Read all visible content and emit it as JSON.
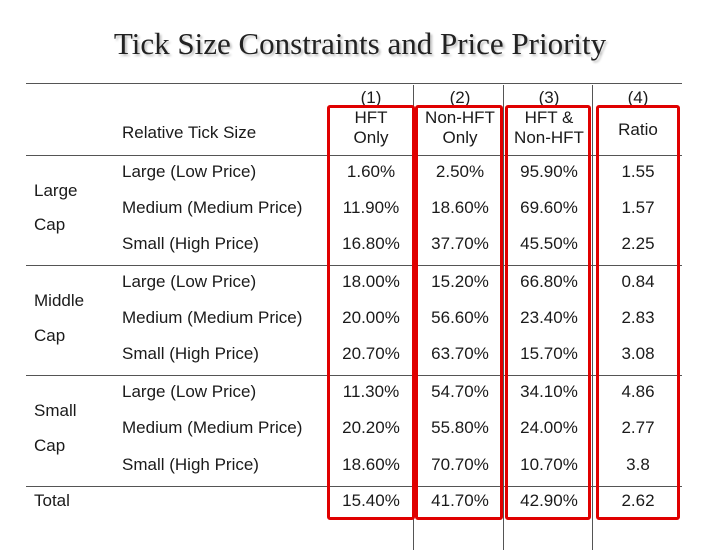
{
  "title": "Tick Size Constraints and Price Priority",
  "columns": [
    {
      "num": "(1)",
      "lines": [
        "HFT",
        "Only"
      ]
    },
    {
      "num": "(2)",
      "lines": [
        "Non-HFT",
        "Only"
      ]
    },
    {
      "num": "(3)",
      "lines": [
        "HFT &",
        "Non-HFT"
      ]
    },
    {
      "num": "(4)",
      "lines": [
        "Ratio"
      ]
    }
  ],
  "row_header": "Relative Tick Size",
  "groups": [
    {
      "label1": "Large",
      "label2": "Cap",
      "rows": [
        {
          "size": "Large (Low Price)",
          "vals": [
            "1.60%",
            "2.50%",
            "95.90%",
            "1.55"
          ]
        },
        {
          "size": "Medium (Medium Price)",
          "vals": [
            "11.90%",
            "18.60%",
            "69.60%",
            "1.57"
          ]
        },
        {
          "size": "Small (High Price)",
          "vals": [
            "16.80%",
            "37.70%",
            "45.50%",
            "2.25"
          ]
        }
      ]
    },
    {
      "label1": "Middle",
      "label2": "Cap",
      "rows": [
        {
          "size": "Large  (Low Price)",
          "vals": [
            "18.00%",
            "15.20%",
            "66.80%",
            "0.84"
          ]
        },
        {
          "size": "Medium  (Medium Price)",
          "vals": [
            "20.00%",
            "56.60%",
            "23.40%",
            "2.83"
          ]
        },
        {
          "size": "Small (High Price)",
          "vals": [
            "20.70%",
            "63.70%",
            "15.70%",
            "3.08"
          ]
        }
      ]
    },
    {
      "label1": "Small",
      "label2": "Cap",
      "rows": [
        {
          "size": "Large (Low Price)",
          "vals": [
            "11.30%",
            "54.70%",
            "34.10%",
            "4.86"
          ]
        },
        {
          "size": "Medium (Medium Price)",
          "vals": [
            "20.20%",
            "55.80%",
            "24.00%",
            "2.77"
          ]
        },
        {
          "size": "Small (High Price)",
          "vals": [
            "18.60%",
            "70.70%",
            "10.70%",
            "3.8"
          ]
        }
      ]
    }
  ],
  "total": {
    "label": "Total",
    "vals": [
      "15.40%",
      "41.70%",
      "42.90%",
      "2.62"
    ]
  },
  "highlight_color": "#e00000"
}
